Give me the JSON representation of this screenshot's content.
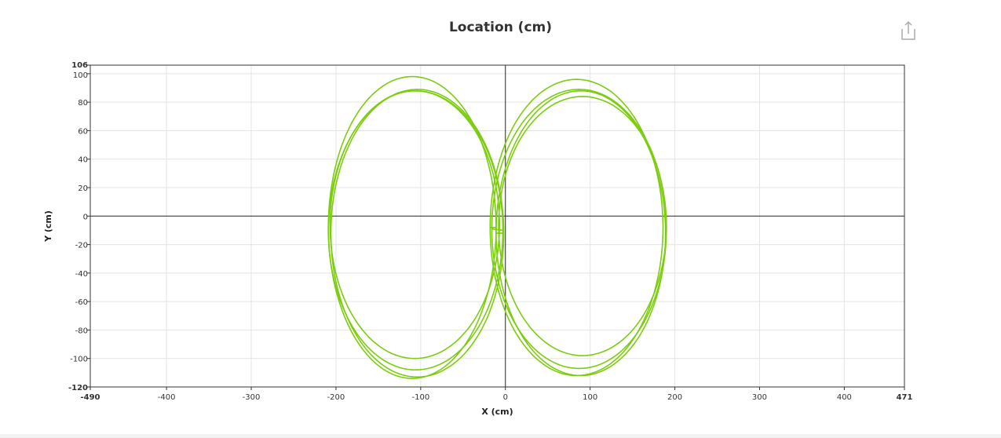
{
  "toolbar": {
    "share_icon": "share-icon"
  },
  "chart_data": {
    "type": "line",
    "title": "Location (cm)",
    "xlabel": "X (cm)",
    "ylabel": "Y (cm)",
    "xlim": [
      -490,
      471
    ],
    "ylim": [
      -120,
      106
    ],
    "x_ticks": [
      -490,
      -400,
      -300,
      -200,
      -100,
      0,
      100,
      200,
      300,
      400,
      471
    ],
    "y_ticks": [
      -120,
      -100,
      -80,
      -60,
      -40,
      -20,
      0,
      20,
      40,
      60,
      80,
      100,
      106
    ],
    "bold_ticks": [
      -490,
      471,
      -120,
      106
    ],
    "grid": true,
    "legend": "none",
    "line_color": "#7ccc0f",
    "loops": [
      {
        "left": {
          "cx": -107,
          "cy": -6,
          "rx": 100,
          "ry": 94
        },
        "right": {
          "cx": 91,
          "cy": -7,
          "rx": 99,
          "ry": 91
        }
      },
      {
        "left": {
          "cx": -106,
          "cy": -10,
          "rx": 103,
          "ry": 98
        },
        "right": {
          "cx": 87,
          "cy": -9,
          "rx": 103,
          "ry": 98
        }
      },
      {
        "left": {
          "cx": -104,
          "cy": -12,
          "rx": 102,
          "ry": 101
        },
        "right": {
          "cx": 89,
          "cy": -12,
          "rx": 100,
          "ry": 100
        }
      },
      {
        "left": {
          "cx": -110,
          "cy": -8,
          "rx": 99,
          "ry": 106
        },
        "right": {
          "cx": 84,
          "cy": -8,
          "rx": 102,
          "ry": 104
        }
      }
    ]
  }
}
